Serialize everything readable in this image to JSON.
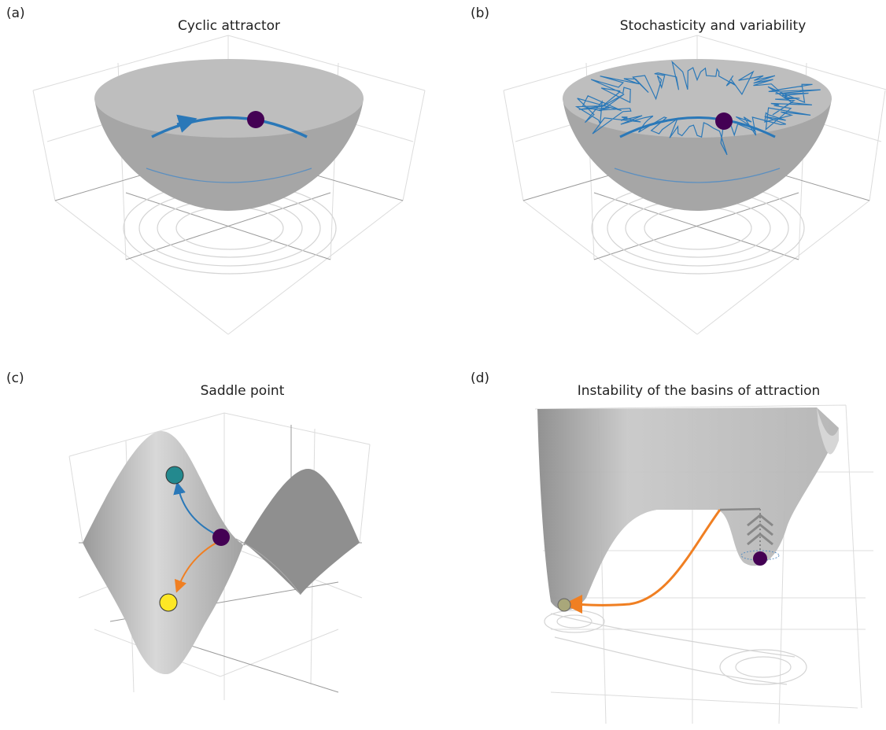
{
  "panels": [
    {
      "label": "(a)",
      "title": "Cyclic attractor"
    },
    {
      "label": "(b)",
      "title": "Stochasticity and variability"
    },
    {
      "label": "(c)",
      "title": "Saddle point"
    },
    {
      "label": "(d)",
      "title": "Instability of the basins of attraction"
    }
  ]
}
